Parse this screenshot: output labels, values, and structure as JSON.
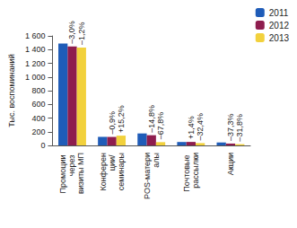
{
  "chart_data": {
    "type": "bar",
    "y_label": "Тыс. воспоминаний",
    "categories": [
      "Промоции через визиты МП",
      "Конференции/ семинары",
      "POS-материалы",
      "Почтовые рассылки",
      "Акции"
    ],
    "series": [
      {
        "name": "2011",
        "color": "#1f5cb8",
        "values": [
          1490,
          125,
          175,
          50,
          43
        ]
      },
      {
        "name": "2012",
        "color": "#8e1d4e",
        "values": [
          1445,
          124,
          149,
          51,
          27
        ],
        "annotations": [
          "–3,0%",
          "–0,9%",
          "–14,8%",
          "+1,4%",
          "–37,3%"
        ]
      },
      {
        "name": "2013",
        "color": "#f2d13c",
        "values": [
          1428,
          143,
          48,
          34,
          18
        ],
        "annotations": [
          "–1,2%",
          "+15,2%",
          "–67,8%",
          "–32,4%",
          "–31,8%"
        ]
      }
    ],
    "ylim": [
      0,
      1600
    ],
    "yticks": [
      0,
      200,
      400,
      600,
      800,
      {
        "value": 1000,
        "label": "1 000"
      },
      {
        "value": 1200,
        "label": "1 200"
      },
      {
        "value": 1400,
        "label": "1 400"
      },
      {
        "value": 1600,
        "label": "1 600"
      }
    ],
    "grid": false,
    "legend": "top-right"
  }
}
